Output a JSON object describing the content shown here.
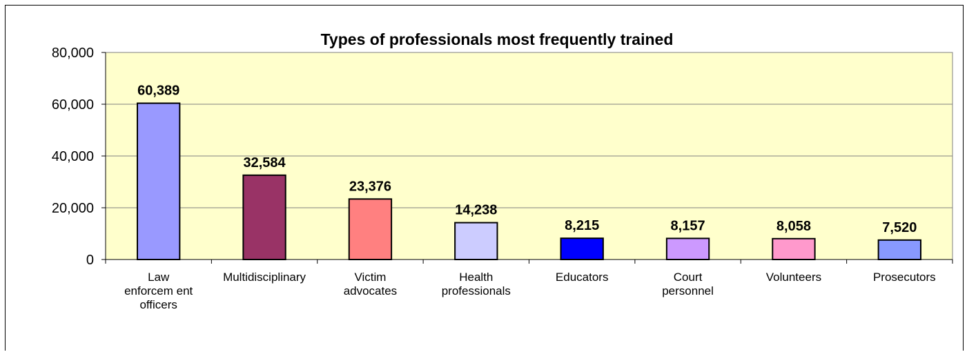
{
  "chart_data": {
    "type": "bar",
    "title": "Types of professionals most frequently trained",
    "xlabel": "",
    "ylabel": "",
    "ylim": [
      0,
      80000
    ],
    "yticks": [
      "0",
      "20,000",
      "40,000",
      "60,000",
      "80,000"
    ],
    "grid": true,
    "legend": "none",
    "plot_background": "#FFFFCC",
    "categories": [
      [
        "Law",
        "enforcem ent",
        "officers"
      ],
      [
        "Multidisciplinary"
      ],
      [
        "Victim",
        "advocates"
      ],
      [
        "Health",
        "professionals"
      ],
      [
        "Educators"
      ],
      [
        "Court",
        "personnel"
      ],
      [
        "Volunteers"
      ],
      [
        "Prosecutors"
      ]
    ],
    "values": [
      60389,
      32584,
      23376,
      14238,
      8215,
      8157,
      8058,
      7520
    ],
    "value_labels": [
      "60,389",
      "32,584",
      "23,376",
      "14,238",
      "8,215",
      "8,157",
      "8,058",
      "7,520"
    ],
    "colors": [
      "#9999FF",
      "#993366",
      "#FF8080",
      "#CCCCFF",
      "#0000FF",
      "#CC99FF",
      "#FF99CC",
      "#8899FF"
    ]
  }
}
